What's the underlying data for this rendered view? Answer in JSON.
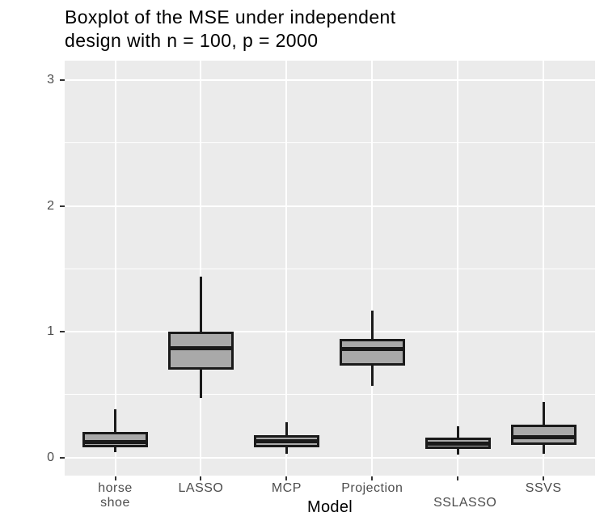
{
  "title_lines": [
    "Boxplot of the MSE under independent",
    "design with n = 100, p = 2000"
  ],
  "chart_data": {
    "type": "boxplot",
    "title": "Boxplot of the MSE under independent design with n = 100, p = 2000",
    "xlabel": "Model",
    "ylabel": "",
    "categories": [
      "horse shoe",
      "LASSO",
      "MCP",
      "Projection",
      "SSLASSO",
      "SSVS"
    ],
    "series": [
      {
        "name": "horse shoe",
        "whisker_low": 0.04,
        "q1": 0.08,
        "median": 0.12,
        "q3": 0.2,
        "whisker_high": 0.38
      },
      {
        "name": "LASSO",
        "whisker_low": 0.47,
        "q1": 0.7,
        "median": 0.87,
        "q3": 1.0,
        "whisker_high": 1.44
      },
      {
        "name": "MCP",
        "whisker_low": 0.03,
        "q1": 0.08,
        "median": 0.13,
        "q3": 0.18,
        "whisker_high": 0.28
      },
      {
        "name": "Projection",
        "whisker_low": 0.57,
        "q1": 0.73,
        "median": 0.86,
        "q3": 0.94,
        "whisker_high": 1.17
      },
      {
        "name": "SSLASSO",
        "whisker_low": 0.02,
        "q1": 0.07,
        "median": 0.11,
        "q3": 0.16,
        "whisker_high": 0.25
      },
      {
        "name": "SSVS",
        "whisker_low": 0.03,
        "q1": 0.1,
        "median": 0.16,
        "q3": 0.26,
        "whisker_high": 0.44
      }
    ],
    "y_ticks": [
      0,
      1,
      2,
      3
    ],
    "y_minor_gridlines": [
      0.5,
      1.5,
      2.5
    ],
    "ylim": [
      -0.15,
      3.15
    ],
    "grid": "on",
    "legend": "none",
    "x_axis_labels": [
      {
        "lines": [
          "horse",
          "shoe"
        ],
        "cat": 0,
        "row": 1
      },
      {
        "lines": [
          "LASSO"
        ],
        "cat": 1,
        "row": 1
      },
      {
        "lines": [
          "MCP"
        ],
        "cat": 2,
        "row": 1
      },
      {
        "lines": [
          "Projection"
        ],
        "cat": 3,
        "row": 1
      },
      {
        "lines": [
          "SSLASSO"
        ],
        "cat": 4,
        "row": 2,
        "dx": 9
      },
      {
        "lines": [
          "SSVS"
        ],
        "cat": 5,
        "row": 1
      }
    ],
    "colors": {
      "panel_bg": "#ebebeb",
      "gridline": "#ffffff",
      "box_fill": "#a9a9a9",
      "box_border": "#1a1a1a",
      "tick_mark": "#333333",
      "tick_label": "#4d4d4d",
      "title_text": "#000000",
      "axis_title_text": "#000000"
    }
  }
}
